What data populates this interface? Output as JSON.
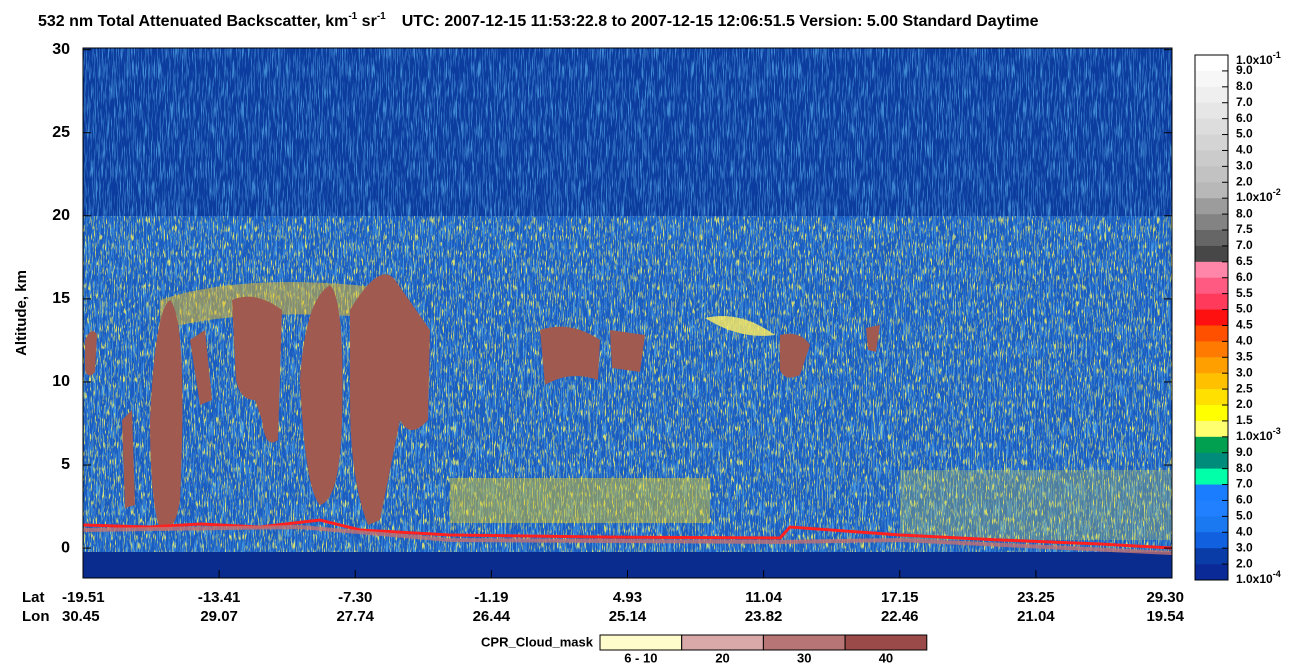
{
  "chart_data": {
    "type": "heatmap",
    "title": {
      "text": "532 nm Total Attenuated Backscatter, km",
      "sup1": "-1",
      "text2": " sr",
      "sup2": "-1",
      "info": "UTC:  2007-12-15 11:53:22.8  to  2007-12-15 12:06:51.5    Version: 5.00  Standard  Daytime"
    },
    "ylabel": "Altitude, km",
    "ylim": [
      -1.8,
      30.1
    ],
    "yticks": [
      0,
      5,
      10,
      15,
      20,
      25,
      30
    ],
    "lat_label": "Lat",
    "lon_label": "Lon",
    "lat": [
      "-19.51",
      "-13.41",
      "-7.30",
      "-1.19",
      "4.93",
      "11.04",
      "17.15",
      "23.25",
      "29.30"
    ],
    "lon": [
      "30.45",
      "29.07",
      "27.74",
      "26.44",
      "25.14",
      "23.82",
      "22.46",
      "21.04",
      "19.54"
    ],
    "colorbar": {
      "labels": [
        {
          "base": "1.0x10",
          "sup": "-1"
        },
        "9.0",
        "8.0",
        "7.0",
        "6.0",
        "5.0",
        "4.0",
        "3.0",
        "2.0",
        {
          "base": "1.0x10",
          "sup": "-2"
        },
        "8.0",
        "7.5",
        "7.0",
        "6.5",
        "6.0",
        "5.5",
        "5.0",
        "4.5",
        "4.0",
        "3.5",
        "3.0",
        "2.5",
        "2.0",
        "1.5",
        {
          "base": "1.0x10",
          "sup": "-3"
        },
        "9.0",
        "8.0",
        "7.0",
        "6.0",
        "5.0",
        "4.0",
        "3.0",
        "2.0",
        {
          "base": "1.0x10",
          "sup": "-4"
        }
      ],
      "colors": [
        "#ffffff",
        "#f7f7f7",
        "#efefef",
        "#e6e6e6",
        "#dddddd",
        "#d4d4d4",
        "#cbcbcb",
        "#c2c2c2",
        "#b8b8b8",
        "#9c9c9c",
        "#838383",
        "#666666",
        "#474747",
        "#ff86a8",
        "#ff5a82",
        "#ff3a5a",
        "#ff1010",
        "#ff5000",
        "#ff7a00",
        "#ffa000",
        "#ffc000",
        "#ffe000",
        "#ffff00",
        "#ffff70",
        "#00a050",
        "#008c7a",
        "#00ffa8",
        "#1a7cff",
        "#2080ff",
        "#1a78f0",
        "#1060e0",
        "#0a3ca8",
        "#0a2a98"
      ]
    },
    "cpr": {
      "label": "CPR_Cloud_mask",
      "labels": [
        "6 - 10",
        "20",
        "30",
        "40"
      ],
      "colors": [
        "#fffccc",
        "#d9a8a8",
        "#b87575",
        "#9a4a48"
      ]
    }
  }
}
